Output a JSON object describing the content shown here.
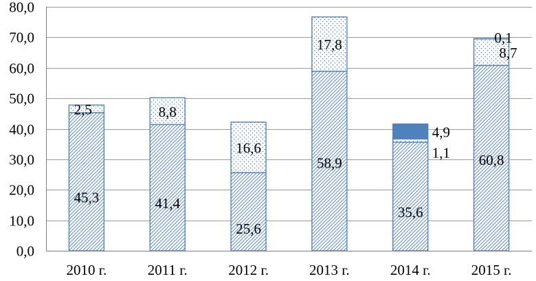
{
  "chart_data": {
    "type": "bar",
    "stacked": true,
    "categories": [
      "2010 г.",
      "2011 г.",
      "2012 г.",
      "2013 г.",
      "2014 г.",
      "2015 г."
    ],
    "series": [
      {
        "fill": "hatch",
        "values": [
          45.3,
          41.4,
          25.6,
          58.9,
          35.6,
          60.8
        ],
        "labels": [
          "45,3",
          "41,4",
          "25,6",
          "58,9",
          "35,6",
          "60,8"
        ]
      },
      {
        "fill": "dots",
        "values": [
          2.5,
          8.8,
          16.6,
          17.8,
          1.1,
          8.7
        ],
        "labels": [
          "2,5",
          "8,8",
          "16,6",
          "17,8",
          "1,1",
          "8,7"
        ]
      },
      {
        "fill": "solid",
        "values": [
          0,
          0,
          0,
          0,
          4.9,
          0.1
        ],
        "labels": [
          "",
          "",
          "",
          "",
          "4,9",
          "0,1"
        ]
      }
    ],
    "ylim": [
      0,
      80
    ],
    "yticks": [
      "0,0",
      "10,0",
      "20,0",
      "30,0",
      "40,0",
      "50,0",
      "60,0",
      "70,0",
      "80,0"
    ],
    "grid": true,
    "colors": {
      "border": "#4a7ebb",
      "solid": "#4f81bd",
      "grid": "#9a9a9a"
    }
  }
}
